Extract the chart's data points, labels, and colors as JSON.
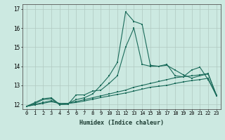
{
  "xlabel": "Humidex (Indice chaleur)",
  "xlim": [
    -0.5,
    23.5
  ],
  "ylim": [
    11.75,
    17.25
  ],
  "xticks": [
    0,
    1,
    2,
    3,
    4,
    5,
    6,
    7,
    8,
    9,
    10,
    11,
    12,
    13,
    14,
    15,
    16,
    17,
    18,
    19,
    20,
    21,
    22,
    23
  ],
  "yticks": [
    12,
    13,
    14,
    15,
    16,
    17
  ],
  "background_color": "#cce9e1",
  "grid_color": "#b0c8c0",
  "line_color": "#1a6b5a",
  "line1_x": [
    0,
    1,
    2,
    3,
    4,
    5,
    6,
    7,
    8,
    9,
    10,
    11,
    12,
    13,
    14,
    15,
    16,
    17,
    18,
    19,
    20,
    21,
    22,
    23
  ],
  "line1_y": [
    11.9,
    12.1,
    12.3,
    12.35,
    12.0,
    12.0,
    12.5,
    12.5,
    12.7,
    12.75,
    13.1,
    13.5,
    15.0,
    16.0,
    14.1,
    14.0,
    14.0,
    14.1,
    13.5,
    13.45,
    13.8,
    13.95,
    13.3,
    12.5
  ],
  "line2_x": [
    0,
    1,
    2,
    3,
    4,
    5,
    6,
    7,
    8,
    9,
    10,
    11,
    12,
    13,
    14,
    15,
    16,
    17,
    18,
    19,
    20,
    21,
    22,
    23
  ],
  "line2_y": [
    11.9,
    12.05,
    12.25,
    12.3,
    11.98,
    12.05,
    12.25,
    12.35,
    12.55,
    13.0,
    13.5,
    14.2,
    16.85,
    16.35,
    16.2,
    14.05,
    14.0,
    14.05,
    13.8,
    13.55,
    13.38,
    13.5,
    13.6,
    12.5
  ],
  "line3_x": [
    0,
    1,
    2,
    3,
    4,
    5,
    6,
    7,
    8,
    9,
    10,
    11,
    12,
    13,
    14,
    15,
    16,
    17,
    18,
    19,
    20,
    21,
    22,
    23
  ],
  "line3_y": [
    11.9,
    12.0,
    12.1,
    12.2,
    12.05,
    12.05,
    12.15,
    12.25,
    12.35,
    12.45,
    12.55,
    12.65,
    12.75,
    12.9,
    13.0,
    13.1,
    13.2,
    13.3,
    13.4,
    13.45,
    13.5,
    13.55,
    13.62,
    12.48
  ],
  "line4_x": [
    0,
    1,
    2,
    3,
    4,
    5,
    6,
    7,
    8,
    9,
    10,
    11,
    12,
    13,
    14,
    15,
    16,
    17,
    18,
    19,
    20,
    21,
    22,
    23
  ],
  "line4_y": [
    11.9,
    11.98,
    12.06,
    12.14,
    12.05,
    12.05,
    12.1,
    12.18,
    12.27,
    12.36,
    12.44,
    12.52,
    12.6,
    12.7,
    12.8,
    12.9,
    12.95,
    13.0,
    13.1,
    13.18,
    13.25,
    13.3,
    13.37,
    12.45
  ]
}
